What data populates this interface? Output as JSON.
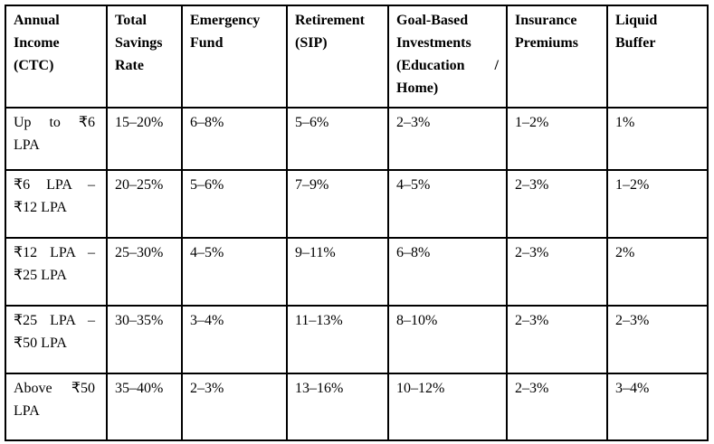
{
  "page": {
    "background_color": "#ffffff",
    "text_color": "#000000",
    "border_color": "#000000"
  },
  "table": {
    "columns": [
      "Annual Income (CTC)",
      "Total Savings Rate",
      "Emergency Fund",
      "Retirement (SIP)",
      "Goal-Based Investments (Education / Home)",
      "Insurance Premiums",
      "Liquid Buffer"
    ],
    "rows": [
      {
        "cells": [
          "Up to ₹6 LPA",
          "15–20%",
          "6–8%",
          "5–6%",
          "2–3%",
          "1–2%",
          "1%"
        ]
      },
      {
        "cells": [
          "₹6 LPA – ₹12 LPA",
          "20–25%",
          "5–6%",
          "7–9%",
          "4–5%",
          "2–3%",
          "1–2%"
        ]
      },
      {
        "cells": [
          "₹12 LPA – ₹25 LPA",
          "25–30%",
          "4–5%",
          "9–11%",
          "6–8%",
          "2–3%",
          "2%"
        ]
      },
      {
        "cells": [
          "₹25 LPA – ₹50 LPA",
          "30–35%",
          "3–4%",
          "11–13%",
          "8–10%",
          "2–3%",
          "2–3%"
        ]
      },
      {
        "cells": [
          "Above ₹50 LPA",
          "35–40%",
          "2–3%",
          "13–16%",
          "10–12%",
          "2–3%",
          "3–4%"
        ]
      }
    ]
  }
}
